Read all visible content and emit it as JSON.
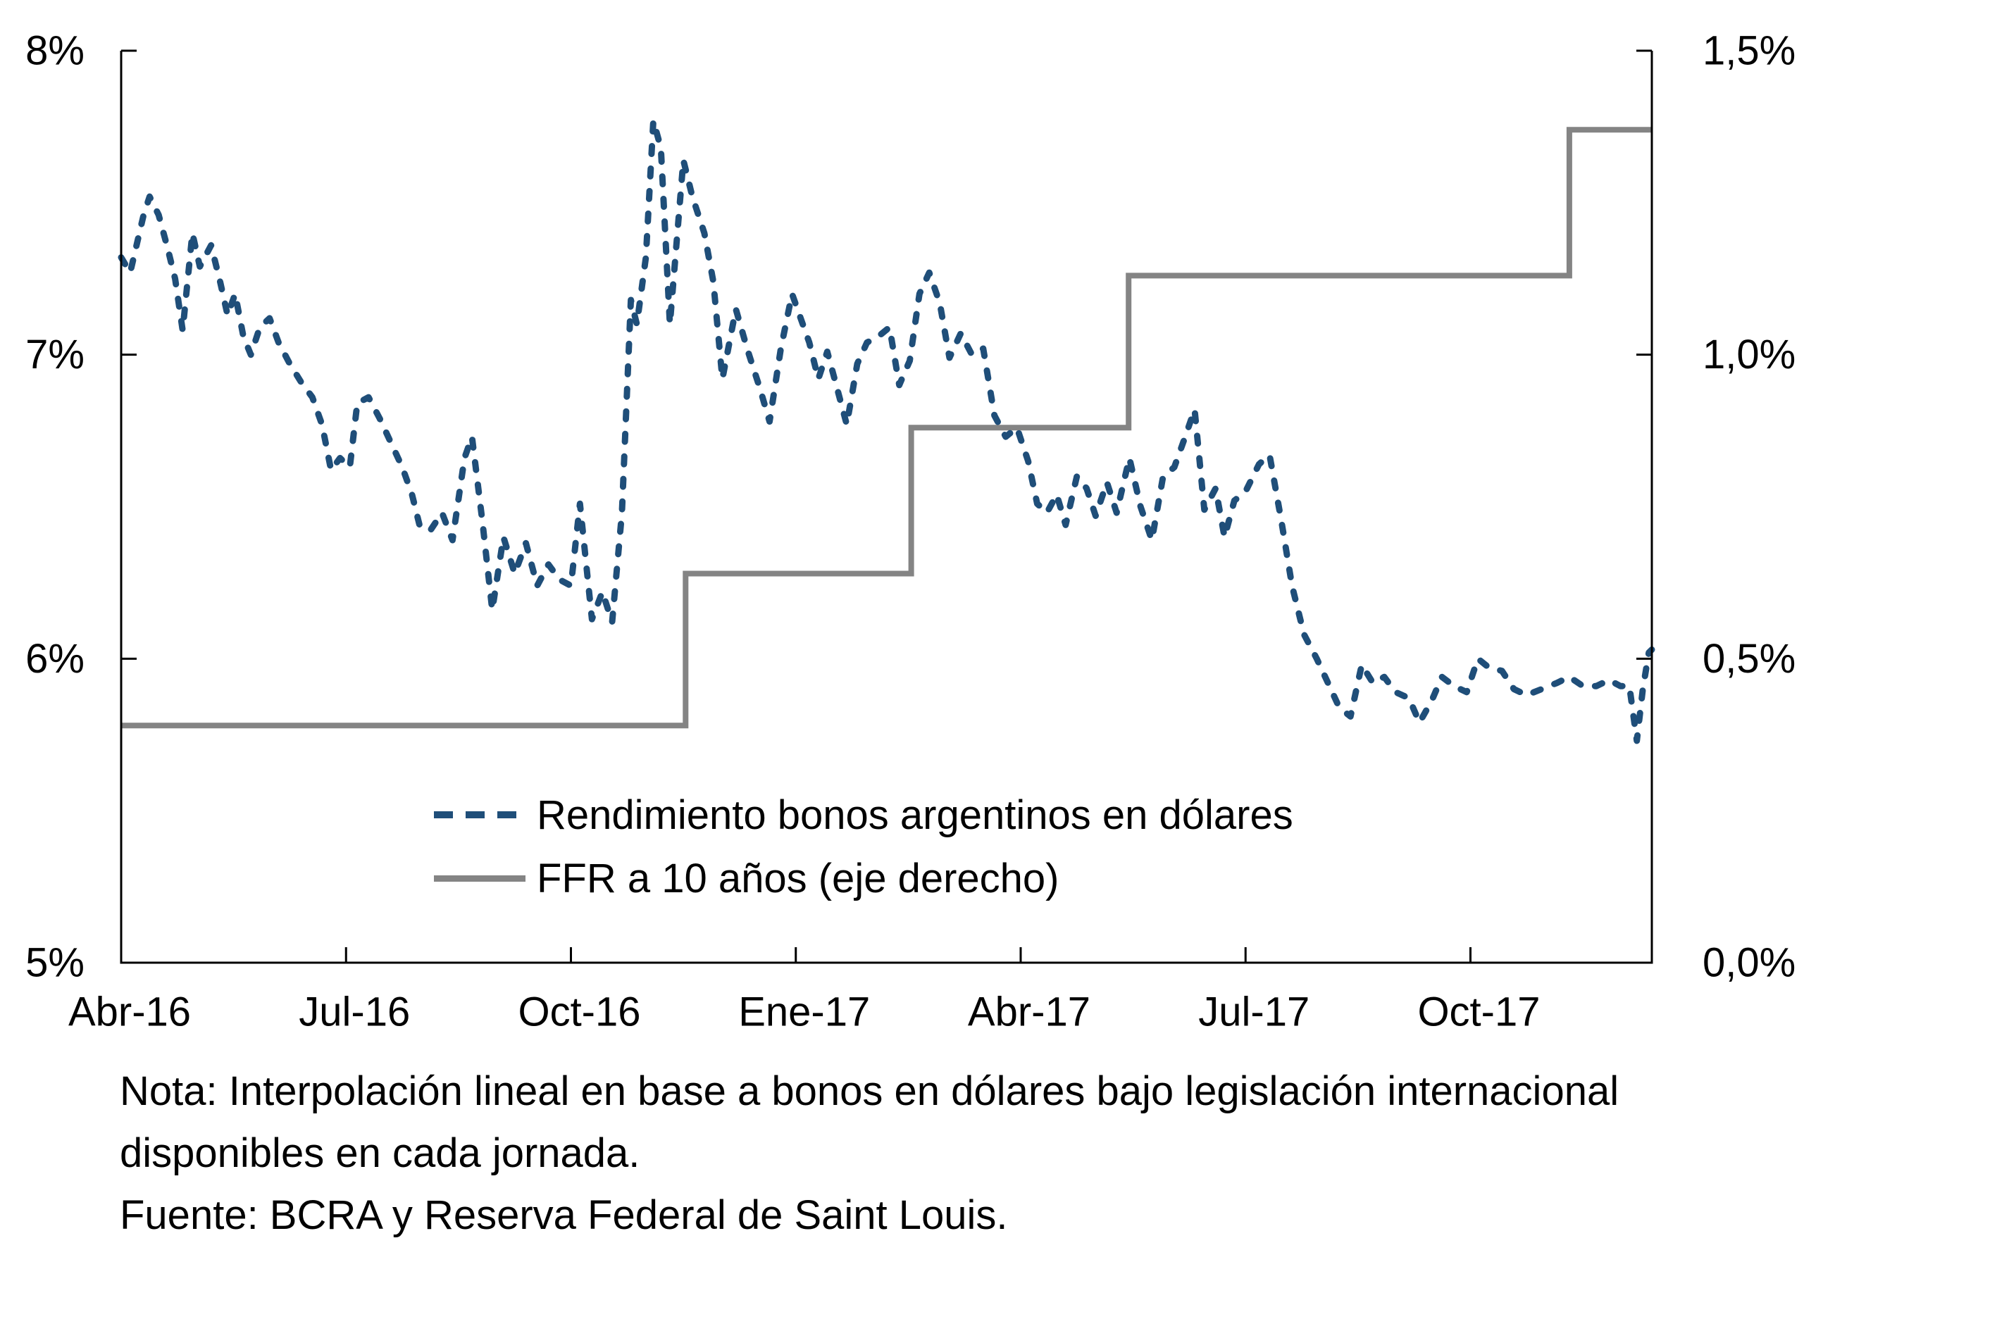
{
  "chart_data": {
    "type": "line",
    "title": "",
    "xlabel": "",
    "ylabel_left": "",
    "ylabel_right": "",
    "grid": false,
    "legend_position": "inside-bottom-left",
    "x_axis": {
      "tick_labels": [
        "Abr-16",
        "Jul-16",
        "Oct-16",
        "Ene-17",
        "Abr-17",
        "Jul-17",
        "Oct-17"
      ],
      "tick_positions_months": [
        0,
        3,
        6,
        9,
        12,
        15,
        18
      ],
      "span_months": 20.42
    },
    "y_axis_left": {
      "tick_labels": [
        "8%",
        "7%",
        "6%",
        "5%"
      ],
      "tick_values": [
        8,
        7,
        6,
        5
      ],
      "range": [
        5,
        8
      ]
    },
    "y_axis_right": {
      "tick_labels": [
        "1,5%",
        "1,0%",
        "0,5%",
        "0,0%"
      ],
      "tick_values": [
        1.5,
        1.0,
        0.5,
        0.0
      ],
      "range": [
        0,
        1.5
      ]
    },
    "series": [
      {
        "name": "Rendimiento bonos argentinos en dólares",
        "axis": "left",
        "style": "dashed",
        "color": "#1f4e79",
        "points": [
          [
            0,
            7.32
          ],
          [
            0.12,
            7.27
          ],
          [
            0.3,
            7.46
          ],
          [
            0.38,
            7.52
          ],
          [
            0.5,
            7.46
          ],
          [
            0.62,
            7.35
          ],
          [
            0.72,
            7.25
          ],
          [
            0.82,
            7.08
          ],
          [
            0.95,
            7.4
          ],
          [
            1.05,
            7.29
          ],
          [
            1.2,
            7.36
          ],
          [
            1.32,
            7.24
          ],
          [
            1.42,
            7.13
          ],
          [
            1.52,
            7.2
          ],
          [
            1.63,
            7.06
          ],
          [
            1.73,
            7.0
          ],
          [
            1.85,
            7.09
          ],
          [
            1.98,
            7.12
          ],
          [
            2.1,
            7.04
          ],
          [
            2.25,
            6.97
          ],
          [
            2.4,
            6.91
          ],
          [
            2.55,
            6.86
          ],
          [
            2.68,
            6.77
          ],
          [
            2.8,
            6.62
          ],
          [
            2.92,
            6.66
          ],
          [
            3.05,
            6.63
          ],
          [
            3.15,
            6.84
          ],
          [
            3.3,
            6.86
          ],
          [
            3.45,
            6.79
          ],
          [
            3.6,
            6.71
          ],
          [
            3.75,
            6.63
          ],
          [
            3.88,
            6.54
          ],
          [
            3.98,
            6.44
          ],
          [
            4.12,
            6.42
          ],
          [
            4.28,
            6.48
          ],
          [
            4.42,
            6.39
          ],
          [
            4.58,
            6.66
          ],
          [
            4.68,
            6.73
          ],
          [
            4.82,
            6.45
          ],
          [
            4.95,
            6.16
          ],
          [
            5.1,
            6.4
          ],
          [
            5.25,
            6.28
          ],
          [
            5.4,
            6.38
          ],
          [
            5.55,
            6.24
          ],
          [
            5.7,
            6.31
          ],
          [
            5.85,
            6.26
          ],
          [
            6.0,
            6.24
          ],
          [
            6.12,
            6.51
          ],
          [
            6.28,
            6.13
          ],
          [
            6.42,
            6.22
          ],
          [
            6.55,
            6.12
          ],
          [
            6.68,
            6.48
          ],
          [
            6.8,
            7.18
          ],
          [
            6.88,
            7.1
          ],
          [
            7.0,
            7.32
          ],
          [
            7.1,
            7.77
          ],
          [
            7.2,
            7.68
          ],
          [
            7.32,
            7.1
          ],
          [
            7.5,
            7.64
          ],
          [
            7.62,
            7.52
          ],
          [
            7.78,
            7.4
          ],
          [
            7.9,
            7.24
          ],
          [
            8.02,
            6.92
          ],
          [
            8.2,
            7.15
          ],
          [
            8.35,
            7.02
          ],
          [
            8.52,
            6.89
          ],
          [
            8.65,
            6.78
          ],
          [
            8.8,
            7.02
          ],
          [
            8.95,
            7.2
          ],
          [
            9.05,
            7.13
          ],
          [
            9.18,
            7.04
          ],
          [
            9.3,
            6.92
          ],
          [
            9.42,
            7.01
          ],
          [
            9.55,
            6.89
          ],
          [
            9.68,
            6.77
          ],
          [
            9.82,
            6.97
          ],
          [
            9.95,
            7.04
          ],
          [
            10.1,
            7.06
          ],
          [
            10.25,
            7.09
          ],
          [
            10.38,
            6.9
          ],
          [
            10.52,
            6.98
          ],
          [
            10.65,
            7.2
          ],
          [
            10.78,
            7.27
          ],
          [
            10.92,
            7.17
          ],
          [
            11.05,
            6.99
          ],
          [
            11.2,
            7.07
          ],
          [
            11.35,
            7.0
          ],
          [
            11.5,
            7.02
          ],
          [
            11.65,
            6.8
          ],
          [
            11.8,
            6.73
          ],
          [
            11.95,
            6.76
          ],
          [
            12.1,
            6.65
          ],
          [
            12.22,
            6.51
          ],
          [
            12.35,
            6.48
          ],
          [
            12.48,
            6.54
          ],
          [
            12.6,
            6.44
          ],
          [
            12.75,
            6.6
          ],
          [
            12.88,
            6.56
          ],
          [
            13.0,
            6.47
          ],
          [
            13.15,
            6.58
          ],
          [
            13.28,
            6.48
          ],
          [
            13.45,
            6.66
          ],
          [
            13.6,
            6.5
          ],
          [
            13.75,
            6.39
          ],
          [
            13.9,
            6.6
          ],
          [
            14.05,
            6.63
          ],
          [
            14.18,
            6.72
          ],
          [
            14.32,
            6.82
          ],
          [
            14.45,
            6.49
          ],
          [
            14.6,
            6.56
          ],
          [
            14.72,
            6.4
          ],
          [
            14.85,
            6.52
          ],
          [
            15.0,
            6.55
          ],
          [
            15.18,
            6.64
          ],
          [
            15.32,
            6.67
          ],
          [
            15.48,
            6.45
          ],
          [
            15.62,
            6.24
          ],
          [
            15.78,
            6.08
          ],
          [
            15.95,
            6.0
          ],
          [
            16.1,
            5.92
          ],
          [
            16.25,
            5.84
          ],
          [
            16.4,
            5.81
          ],
          [
            16.55,
            5.98
          ],
          [
            16.7,
            5.92
          ],
          [
            16.85,
            5.94
          ],
          [
            17.0,
            5.89
          ],
          [
            17.18,
            5.87
          ],
          [
            17.32,
            5.79
          ],
          [
            17.48,
            5.86
          ],
          [
            17.62,
            5.94
          ],
          [
            17.78,
            5.91
          ],
          [
            17.95,
            5.89
          ],
          [
            18.1,
            6.0
          ],
          [
            18.25,
            5.97
          ],
          [
            18.42,
            5.96
          ],
          [
            18.58,
            5.9
          ],
          [
            18.75,
            5.88
          ],
          [
            18.95,
            5.9
          ],
          [
            19.15,
            5.92
          ],
          [
            19.32,
            5.94
          ],
          [
            19.5,
            5.91
          ],
          [
            19.68,
            5.91
          ],
          [
            19.85,
            5.93
          ],
          [
            20.0,
            5.91
          ],
          [
            20.12,
            5.91
          ],
          [
            20.22,
            5.73
          ],
          [
            20.3,
            5.9
          ],
          [
            20.38,
            6.02
          ],
          [
            20.42,
            6.03
          ]
        ]
      },
      {
        "name": "FFR a 10 años (eje derecho)",
        "axis": "right",
        "style": "step",
        "color": "#848484",
        "steps_month_value": [
          [
            0,
            0.39
          ],
          [
            7.53,
            0.64
          ],
          [
            10.54,
            0.88
          ],
          [
            13.44,
            1.13
          ],
          [
            19.32,
            1.37
          ]
        ]
      }
    ]
  },
  "legend": {
    "items": [
      {
        "label": "Rendimiento bonos argentinos en dólares"
      },
      {
        "label": "FFR a 10 años (eje derecho)"
      }
    ]
  },
  "notes": {
    "line1": "Nota: Interpolación lineal en base a bonos en dólares bajo legislación internacional",
    "line2": "disponibles en cada jornada.",
    "line3": "Fuente: BCRA y Reserva Federal de Saint Louis."
  },
  "colors": {
    "bond_line": "#1f4e79",
    "ffr_line": "#848484",
    "axis": "#000000",
    "text": "#000000",
    "background": "#ffffff"
  }
}
